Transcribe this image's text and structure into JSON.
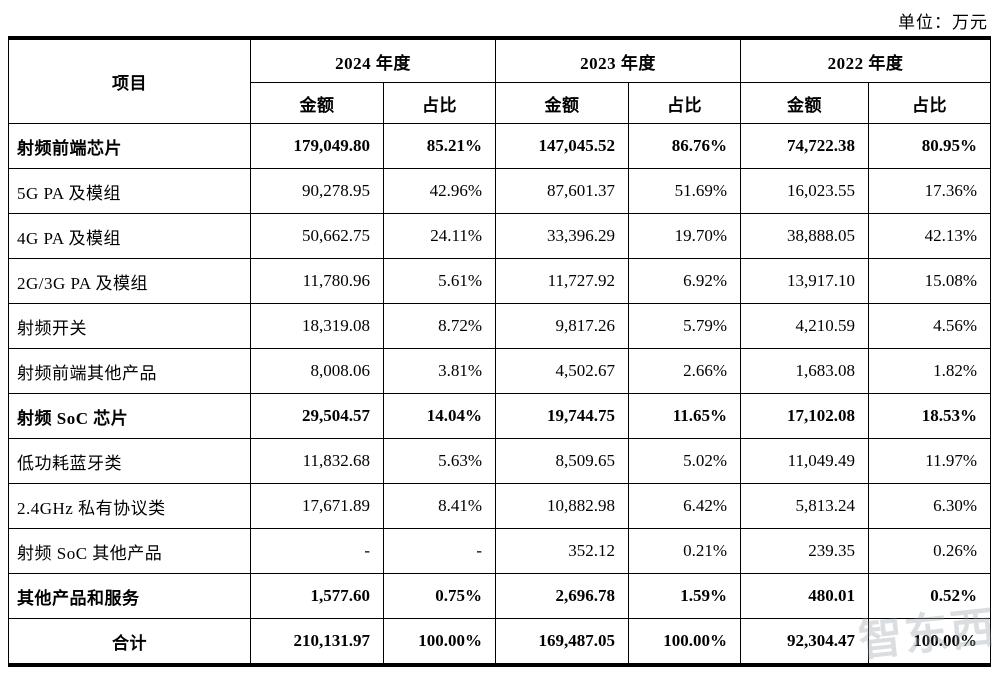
{
  "unit_label": "单位：万元",
  "watermark": "智东西",
  "table": {
    "header": {
      "item_col": "项目",
      "year_groups": [
        "2024 年度",
        "2023 年度",
        "2022 年度"
      ],
      "sub_cols": [
        "金额",
        "占比"
      ]
    },
    "rows": [
      {
        "item": "射频前端芯片",
        "bold": true,
        "center": false,
        "values": [
          "179,049.80",
          "85.21%",
          "147,045.52",
          "86.76%",
          "74,722.38",
          "80.95%"
        ]
      },
      {
        "item": "5G PA 及模组",
        "bold": false,
        "center": false,
        "values": [
          "90,278.95",
          "42.96%",
          "87,601.37",
          "51.69%",
          "16,023.55",
          "17.36%"
        ]
      },
      {
        "item": "4G PA 及模组",
        "bold": false,
        "center": false,
        "values": [
          "50,662.75",
          "24.11%",
          "33,396.29",
          "19.70%",
          "38,888.05",
          "42.13%"
        ]
      },
      {
        "item": "2G/3G PA 及模组",
        "bold": false,
        "center": false,
        "values": [
          "11,780.96",
          "5.61%",
          "11,727.92",
          "6.92%",
          "13,917.10",
          "15.08%"
        ]
      },
      {
        "item": "射频开关",
        "bold": false,
        "center": false,
        "values": [
          "18,319.08",
          "8.72%",
          "9,817.26",
          "5.79%",
          "4,210.59",
          "4.56%"
        ]
      },
      {
        "item": "射频前端其他产品",
        "bold": false,
        "center": false,
        "values": [
          "8,008.06",
          "3.81%",
          "4,502.67",
          "2.66%",
          "1,683.08",
          "1.82%"
        ]
      },
      {
        "item": "射频 SoC 芯片",
        "bold": true,
        "center": false,
        "values": [
          "29,504.57",
          "14.04%",
          "19,744.75",
          "11.65%",
          "17,102.08",
          "18.53%"
        ]
      },
      {
        "item": "低功耗蓝牙类",
        "bold": false,
        "center": false,
        "values": [
          "11,832.68",
          "5.63%",
          "8,509.65",
          "5.02%",
          "11,049.49",
          "11.97%"
        ]
      },
      {
        "item": "2.4GHz 私有协议类",
        "bold": false,
        "center": false,
        "values": [
          "17,671.89",
          "8.41%",
          "10,882.98",
          "6.42%",
          "5,813.24",
          "6.30%"
        ]
      },
      {
        "item": "射频 SoC 其他产品",
        "bold": false,
        "center": false,
        "values": [
          "-",
          "-",
          "352.12",
          "0.21%",
          "239.35",
          "0.26%"
        ]
      },
      {
        "item": "其他产品和服务",
        "bold": true,
        "center": false,
        "values": [
          "1,577.60",
          "0.75%",
          "2,696.78",
          "1.59%",
          "480.01",
          "0.52%"
        ]
      },
      {
        "item": "合计",
        "bold": true,
        "center": true,
        "values": [
          "210,131.97",
          "100.00%",
          "169,487.05",
          "100.00%",
          "92,304.47",
          "100.00%"
        ]
      }
    ]
  }
}
